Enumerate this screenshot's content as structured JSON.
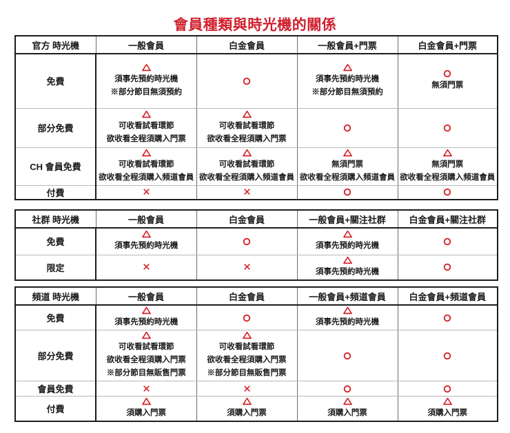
{
  "title": "會員種類與時光機的關係",
  "colors": {
    "title": "#d0202e",
    "symbol": "#d5262c",
    "text": "#1a1a1a"
  },
  "symbols_legend": {
    "triangle": "conditional",
    "circle": "allowed",
    "cross": "not-allowed"
  },
  "tables": [
    {
      "name": "official-timemachine",
      "header": [
        "官方 時光機",
        "一般會員",
        "白金會員",
        "一般會員+門票",
        "白金會員+門票"
      ],
      "rows": [
        {
          "label": "免費",
          "cells": [
            {
              "symbol": "triangle",
              "lines": [
                "須事先預約時光機",
                "※部分節目無須預約"
              ]
            },
            {
              "symbol": "circle",
              "lines": []
            },
            {
              "symbol": "triangle",
              "lines": [
                "須事先預約時光機",
                "※部分節目無須預約"
              ]
            },
            {
              "symbol": "circle",
              "lines": [
                "無須門票"
              ]
            }
          ]
        },
        {
          "label": "部分免費",
          "cells": [
            {
              "symbol": "triangle",
              "lines": [
                "可收看試看環節",
                "欲收看全程須購入門票"
              ]
            },
            {
              "symbol": "triangle",
              "lines": [
                "可收看試看環節",
                "欲收看全程須購入門票"
              ]
            },
            {
              "symbol": "circle",
              "lines": []
            },
            {
              "symbol": "circle",
              "lines": []
            }
          ]
        },
        {
          "label": "CH 會員免費",
          "cells": [
            {
              "symbol": "triangle",
              "lines": [
                "可收看試看環節",
                "欲收看全程須購入頻道會員"
              ]
            },
            {
              "symbol": "triangle",
              "lines": [
                "可收看試看環節",
                "欲收看全程須購入頻道會員"
              ]
            },
            {
              "symbol": "triangle",
              "lines": [
                "無須門票",
                "欲收看全程須購入頻道會員"
              ]
            },
            {
              "symbol": "triangle",
              "lines": [
                "無須門票",
                "欲收看全程須購入頻道會員"
              ]
            }
          ]
        },
        {
          "label": "付費",
          "cells": [
            {
              "symbol": "cross",
              "lines": []
            },
            {
              "symbol": "cross",
              "lines": []
            },
            {
              "symbol": "circle",
              "lines": []
            },
            {
              "symbol": "circle",
              "lines": []
            }
          ]
        }
      ]
    },
    {
      "name": "community-timemachine",
      "header": [
        "社群 時光機",
        "一般會員",
        "白金會員",
        "一般會員+關注社群",
        "白金會員+關注社群"
      ],
      "rows": [
        {
          "label": "免費",
          "cells": [
            {
              "symbol": "triangle",
              "lines": [
                "須事先預約時光機"
              ]
            },
            {
              "symbol": "circle",
              "lines": []
            },
            {
              "symbol": "triangle",
              "lines": [
                "須事先預約時光機"
              ]
            },
            {
              "symbol": "circle",
              "lines": []
            }
          ]
        },
        {
          "label": "限定",
          "cells": [
            {
              "symbol": "cross",
              "lines": []
            },
            {
              "symbol": "cross",
              "lines": []
            },
            {
              "symbol": "triangle",
              "lines": [
                "須事先預約時光機"
              ]
            },
            {
              "symbol": "circle",
              "lines": []
            }
          ]
        }
      ]
    },
    {
      "name": "channel-timemachine",
      "header": [
        "頻道 時光機",
        "一般會員",
        "白金會員",
        "一般會員+頻道會員",
        "白金會員+頻道會員"
      ],
      "rows": [
        {
          "label": "免費",
          "cells": [
            {
              "symbol": "triangle",
              "lines": [
                "須事先預約時光機"
              ]
            },
            {
              "symbol": "circle",
              "lines": []
            },
            {
              "symbol": "triangle",
              "lines": [
                "須事先預約時光機"
              ]
            },
            {
              "symbol": "circle",
              "lines": []
            }
          ]
        },
        {
          "label": "部分免費",
          "cells": [
            {
              "symbol": "triangle",
              "lines": [
                "可收看試看環節",
                "欲收看全程須購入門票",
                "※部分節目無販售門票"
              ]
            },
            {
              "symbol": "triangle",
              "lines": [
                "可收看試看環節",
                "欲收看全程須購入門票",
                "※部分節目無販售門票"
              ]
            },
            {
              "symbol": "circle",
              "lines": []
            },
            {
              "symbol": "circle",
              "lines": []
            }
          ]
        },
        {
          "label": "會員免費",
          "cells": [
            {
              "symbol": "cross",
              "lines": []
            },
            {
              "symbol": "cross",
              "lines": []
            },
            {
              "symbol": "circle",
              "lines": []
            },
            {
              "symbol": "circle",
              "lines": []
            }
          ]
        },
        {
          "label": "付費",
          "cells": [
            {
              "symbol": "triangle",
              "lines": [
                "須購入門票"
              ]
            },
            {
              "symbol": "triangle",
              "lines": [
                "須購入門票"
              ]
            },
            {
              "symbol": "triangle",
              "lines": [
                "須購入門票"
              ]
            },
            {
              "symbol": "triangle",
              "lines": [
                "須購入門票"
              ]
            }
          ]
        }
      ]
    }
  ]
}
